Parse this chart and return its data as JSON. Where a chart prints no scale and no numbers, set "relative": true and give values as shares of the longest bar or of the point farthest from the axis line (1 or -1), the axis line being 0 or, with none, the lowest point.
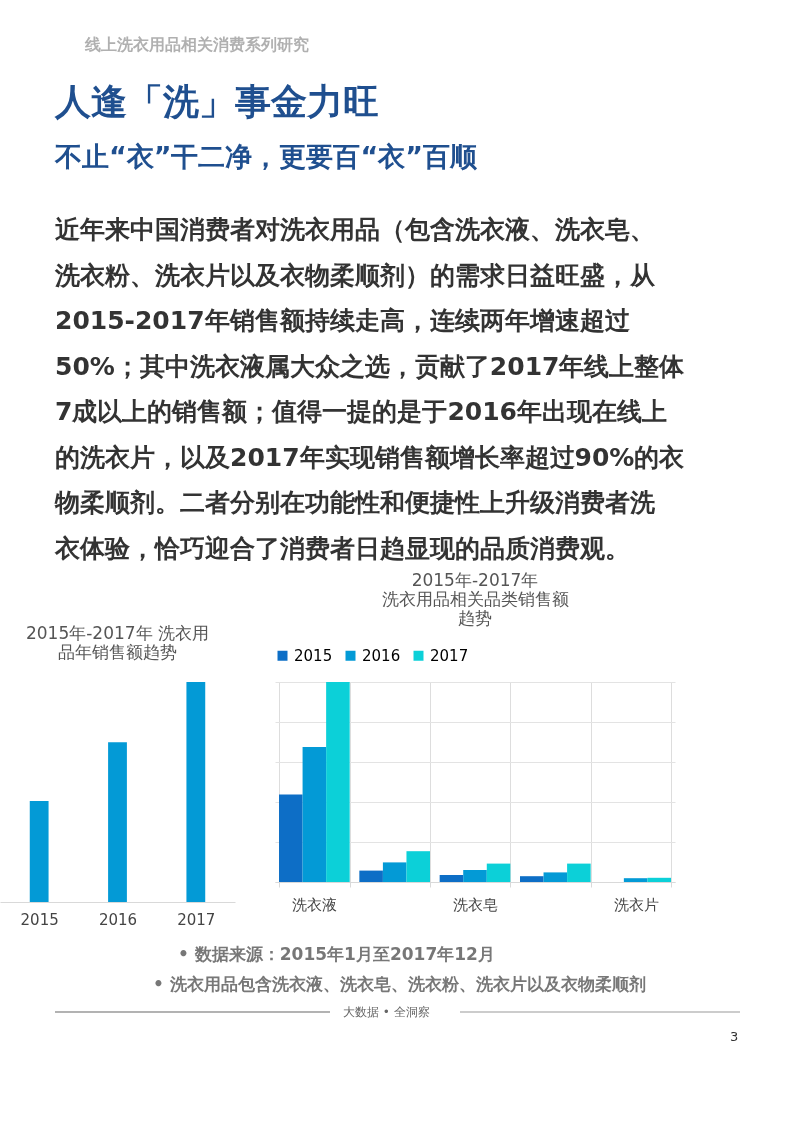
{
  "chart_data": [
    {
      "type": "other",
      "title": "人逢「洗」事金力旺",
      "subtitle": "不止“衣”干二净，更要百“衣”百顺",
      "annotations": [
        "线上洗衣用品相关消费系列研究",
        "近年来中国消费者对洗衣用品（包含洗衣液、洗衣皂、",
        "洗衣粉、洗衣片以及衣物柔顺剂）的需求日益旺盛，从",
        "2015-2017年销售额持续走高，连续两年增速超过",
        "50%；其中洗衣液属大众之选，贡献了2017年线上整体",
        "7成以上的销售额；值得一提的是于2016年出现在线上",
        "的洗衣片，以及2017年实现销售额增长率超过90%的衣",
        "物柔顺剂。二者分别在功能性和便捷性上升级消费者洗",
        "衣体验，恰巧迎合了消费者日趋显现的品质消费观。"
      ]
    },
    {
      "type": "bar",
      "title": "2015年-2017年 洗衣用品年销售额趋势",
      "relative": true,
      "grid": false,
      "categories": [
        "2015",
        "2016",
        "2017"
      ],
      "values": [
        0.459,
        0.726,
        1
      ],
      "color": "#039ad6"
    },
    {
      "type": "bar",
      "title": "2015年-2017年洗衣用品相关品类销售额趋势",
      "relative": true,
      "grid": true,
      "legend": "top",
      "categories": [
        "洗衣液",
        null,
        "洗衣皂",
        null,
        "洗衣片"
      ],
      "series": [
        {
          "name": "2015",
          "color": "#0d6ec6",
          "values": [
            0.437,
            0.057,
            0.035,
            0.029,
            null
          ]
        },
        {
          "name": "2016",
          "color": "#039ad6",
          "values": [
            0.675,
            0.098,
            0.06,
            0.048,
            0.019
          ]
        },
        {
          "name": "2017",
          "color": "#0cd0d8",
          "values": [
            1,
            0.154,
            0.092,
            0.092,
            0.021
          ]
        }
      ]
    },
    {
      "type": "other",
      "annotations": [
        "•   数据来源：2015年1月至2017年12月",
        "•   洗衣用品包含洗衣液、洗衣皂、洗衣粉、洗衣片以及衣物柔顺剂",
        "大数据  •  全洞察",
        "3"
      ]
    }
  ]
}
